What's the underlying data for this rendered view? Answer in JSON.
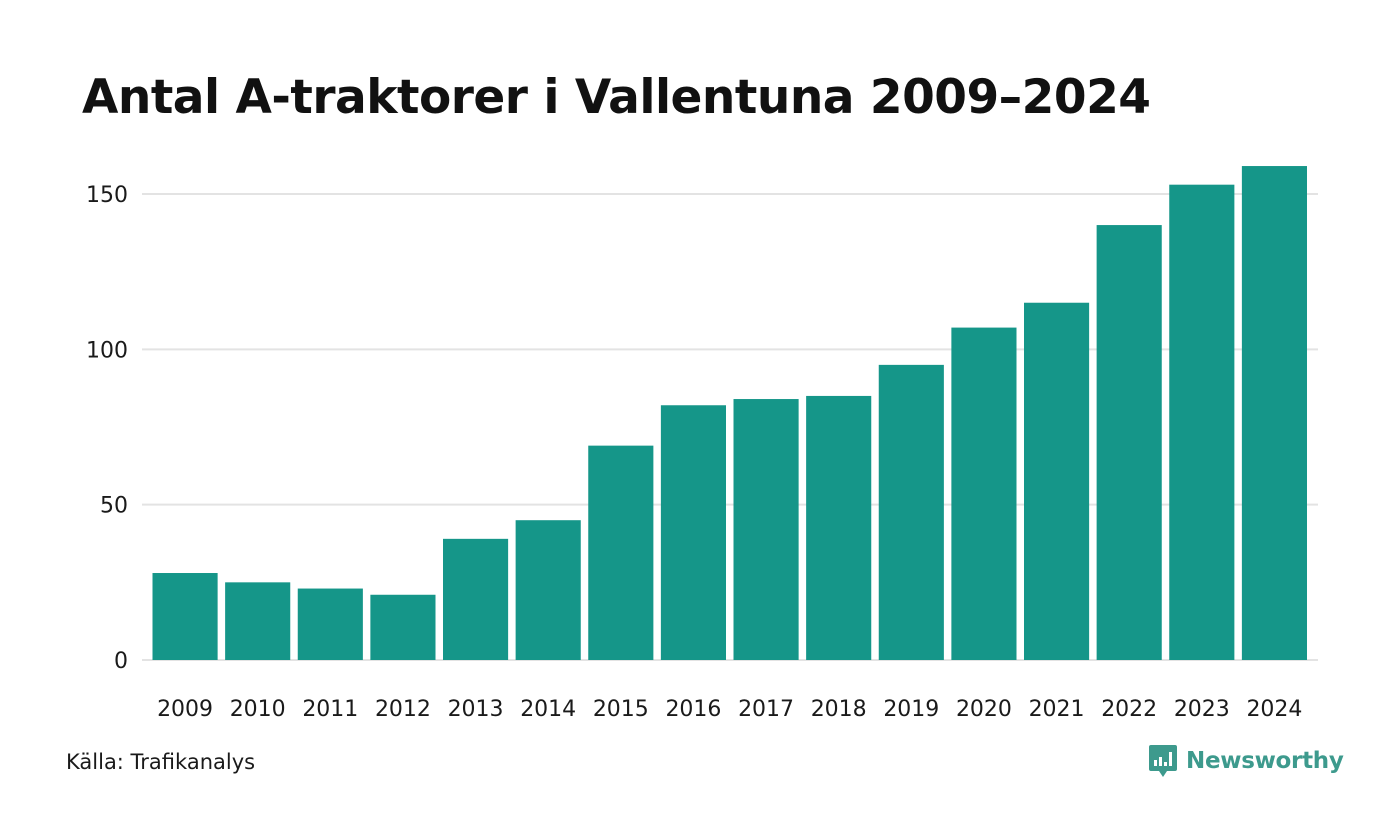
{
  "title": "Antal A-traktorer i Vallentuna 2009–2024",
  "source": "Källa: Trafikanalys",
  "brand": "Newsworthy",
  "colors": {
    "bar": "#159689",
    "grid": "#e3e3e3",
    "brand": "#3d9a8d"
  },
  "chart_data": {
    "type": "bar",
    "title": "Antal A-traktorer i Vallentuna 2009–2024",
    "xlabel": "",
    "ylabel": "",
    "categories": [
      "2009",
      "2010",
      "2011",
      "2012",
      "2013",
      "2014",
      "2015",
      "2016",
      "2017",
      "2018",
      "2019",
      "2020",
      "2021",
      "2022",
      "2023",
      "2024"
    ],
    "values": [
      28,
      25,
      23,
      21,
      39,
      45,
      69,
      82,
      84,
      85,
      95,
      107,
      115,
      140,
      153,
      159
    ],
    "ylim": [
      0,
      160
    ],
    "yticks": [
      "0",
      "50",
      "100",
      "150"
    ],
    "grid": true
  }
}
